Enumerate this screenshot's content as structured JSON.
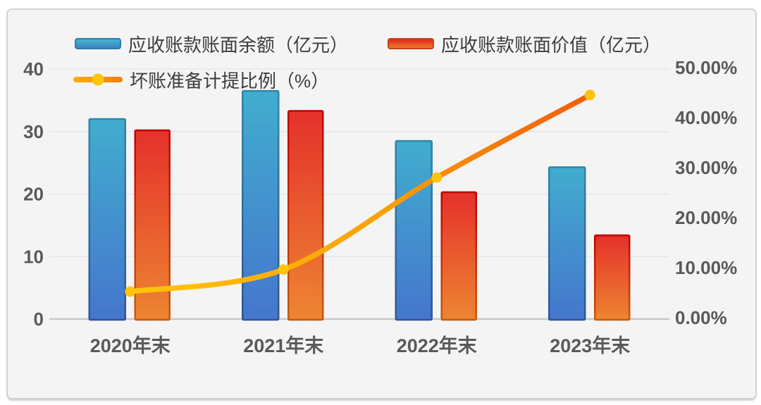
{
  "accent_colors": {
    "bar1_top": "#41adce",
    "bar1_bottom": "#4576cd",
    "bar1_border_top": "#2e86a8",
    "bar1_border_bottom": "#2f5597",
    "bar2_top": "#e5312b",
    "bar2_bottom": "#ed8532",
    "bar2_border_top": "#c00000",
    "bar2_border_bottom": "#c55a11",
    "line_start": "#ffc60a",
    "line_end": "#f25b0d",
    "marker": "#ffc40c",
    "grid": "#e6e6e6",
    "axis_line": "#c8c8c8",
    "tick_text": "#595959",
    "legend_text": "#3d3d3d",
    "plot_bg": "#f4f4f4"
  },
  "chart_data": {
    "type": "combo-bar-line",
    "categories": [
      "2020年末",
      "2021年末",
      "2022年末",
      "2023年末"
    ],
    "series": [
      {
        "name": "应收账款账面余额（亿元）",
        "type": "bar",
        "axis": "left",
        "values": [
          32.0,
          36.5,
          28.5,
          24.3
        ]
      },
      {
        "name": "应收账款账面价值（亿元）",
        "type": "bar",
        "axis": "left",
        "values": [
          30.2,
          33.3,
          20.3,
          13.4
        ]
      },
      {
        "name": "坏账准备计提比例（%）",
        "type": "line",
        "axis": "right",
        "values": [
          5.5,
          9.9,
          28.3,
          44.8
        ]
      }
    ],
    "left_axis": {
      "min": 0,
      "max": 40,
      "ticks": [
        0,
        10,
        20,
        30,
        40
      ],
      "tick_labels": [
        "0",
        "10",
        "20",
        "30",
        "40"
      ]
    },
    "right_axis": {
      "min": 0,
      "max": 50,
      "ticks": [
        0,
        10,
        20,
        30,
        40,
        50
      ],
      "tick_labels": [
        "0.00%",
        "10.00%",
        "20.00%",
        "30.00%",
        "40.00%",
        "50.00%"
      ]
    },
    "grid": true,
    "legend_position": "top-left"
  }
}
